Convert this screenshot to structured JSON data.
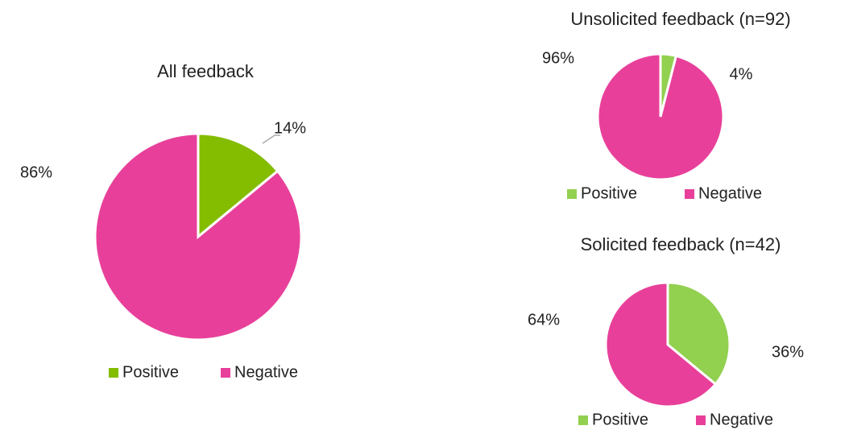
{
  "chart_data": [
    {
      "type": "pie",
      "title": "All feedback",
      "categories": [
        "Positive",
        "Negative"
      ],
      "values": [
        14,
        86
      ],
      "value_labels": [
        "14%",
        "86%"
      ],
      "colors": [
        "#84bc00",
        "#e8409a"
      ],
      "legend": "bottom"
    },
    {
      "type": "pie",
      "title": "Unsolicited feedback (n=92)",
      "categories": [
        "Positive",
        "Negative"
      ],
      "values": [
        4,
        96
      ],
      "value_labels": [
        "4%",
        "96%"
      ],
      "colors": [
        "#92d050",
        "#e8409a"
      ],
      "legend": "bottom"
    },
    {
      "type": "pie",
      "title": "Solicited feedback (n=42)",
      "categories": [
        "Positive",
        "Negative"
      ],
      "values": [
        36,
        64
      ],
      "value_labels": [
        "36%",
        "64%"
      ],
      "colors": [
        "#92d050",
        "#e8409a"
      ],
      "legend": "bottom"
    }
  ]
}
